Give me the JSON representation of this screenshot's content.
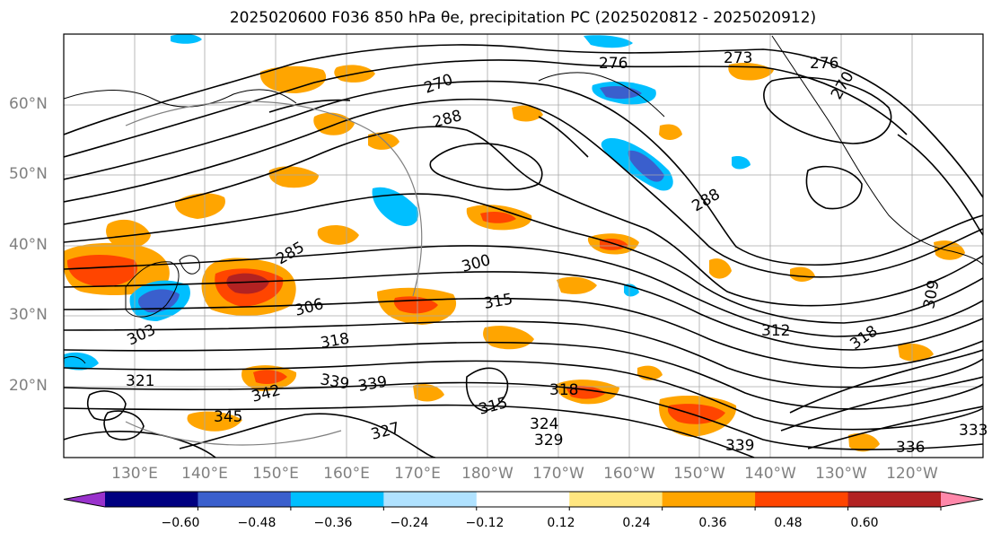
{
  "title": "2025020600 F036 850 hPa θe, precipitation PC (2025020812 - 2025020912)",
  "lat_labels": [
    "60°N",
    "50°N",
    "40°N",
    "30°N",
    "20°N"
  ],
  "lon_labels": [
    "130°E",
    "140°E",
    "150°E",
    "160°E",
    "170°E",
    "180°W",
    "170°W",
    "160°W",
    "150°W",
    "140°W",
    "130°W",
    "120°W"
  ],
  "contour_labels": [
    "276",
    "273",
    "276",
    "270",
    "270",
    "288",
    "288",
    "285",
    "300",
    "306",
    "303",
    "315",
    "318",
    "312",
    "318",
    "321",
    "339",
    "339",
    "342",
    "345",
    "315",
    "318",
    "324",
    "327",
    "329",
    "339",
    "336",
    "333",
    "309"
  ],
  "colorbar": {
    "ticks": [
      "−0.60",
      "−0.48",
      "−0.36",
      "−0.24",
      "−0.12",
      "0.12",
      "0.24",
      "0.36",
      "0.48",
      "0.60"
    ],
    "colors": [
      "#9932cc",
      "#000080",
      "#3a5fcd",
      "#00bfff",
      "#b0e2ff",
      "#ffffff",
      "#ffe680",
      "#ffa500",
      "#ff4500",
      "#b22222",
      "#ff88aa"
    ]
  }
}
